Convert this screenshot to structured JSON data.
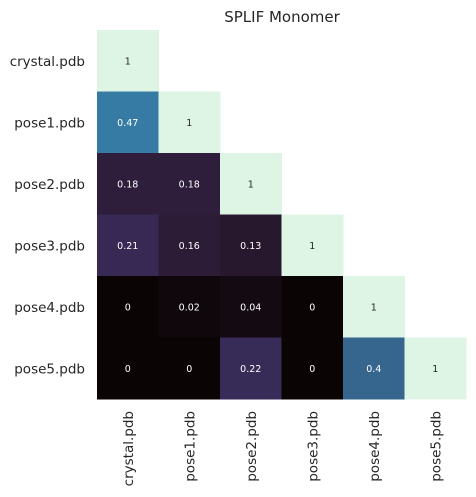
{
  "chart_data": {
    "type": "heatmap",
    "title": "SPLIF Monomer",
    "rows": [
      "crystal.pdb",
      "pose1.pdb",
      "pose2.pdb",
      "pose3.pdb",
      "pose4.pdb",
      "pose5.pdb"
    ],
    "columns": [
      "crystal.pdb",
      "pose1.pdb",
      "pose2.pdb",
      "pose3.pdb",
      "pose4.pdb",
      "pose5.pdb"
    ],
    "values": [
      [
        1
      ],
      [
        0.47,
        1
      ],
      [
        0.18,
        0.18,
        1
      ],
      [
        0.21,
        0.16,
        0.13,
        1
      ],
      [
        0,
        0.02,
        0.04,
        0,
        1
      ],
      [
        0,
        0,
        0.22,
        0,
        0.4,
        1
      ]
    ],
    "value_labels": [
      [
        "1"
      ],
      [
        "0.47",
        "1"
      ],
      [
        "0.18",
        "0.18",
        "1"
      ],
      [
        "0.21",
        "0.16",
        "0.13",
        "1"
      ],
      [
        "0",
        "0.02",
        "0.04",
        "0",
        "1"
      ],
      [
        "0",
        "0",
        "0.22",
        "0",
        "0.4",
        "1"
      ]
    ],
    "mask": "upper-triangle",
    "colormap": "mako",
    "colors": {
      "low": "#0b0405",
      "mid": "#357ba3",
      "high": "#def5e5",
      "text_dark": "#262626",
      "text_light": "#ffffff"
    },
    "grid": false,
    "legend": "none"
  }
}
